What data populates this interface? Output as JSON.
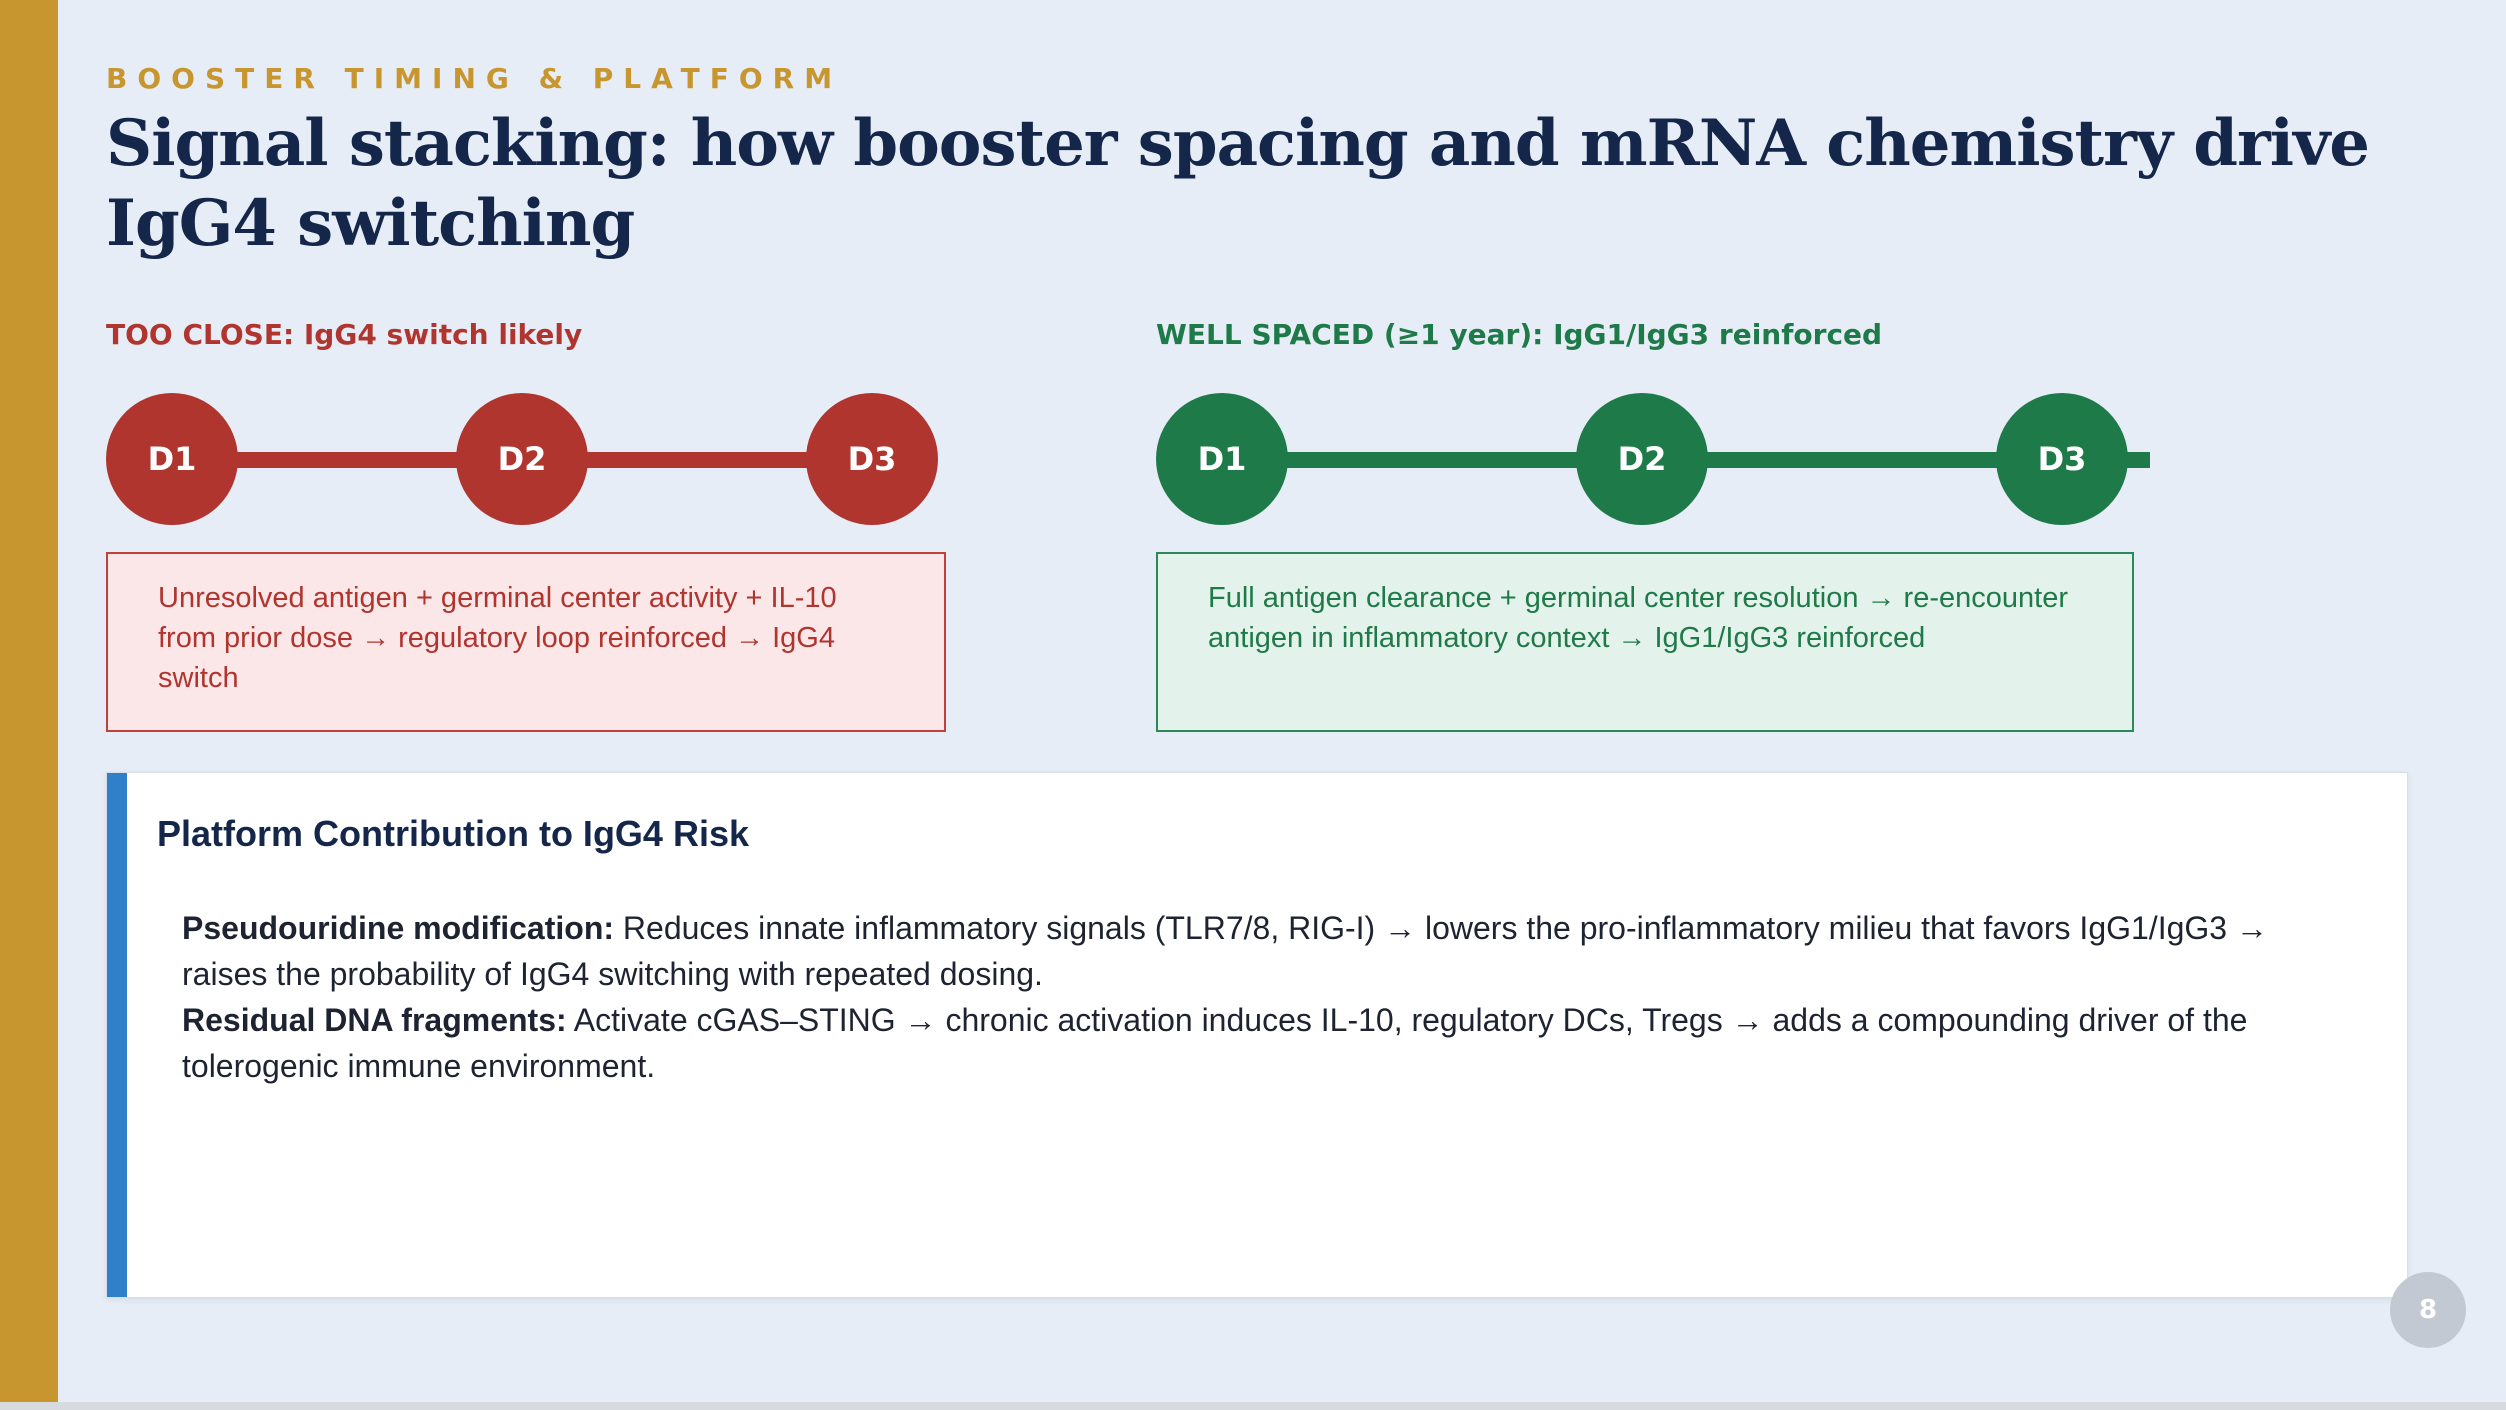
{
  "eyebrow": "BOOSTER TIMING & PLATFORM",
  "title": "Signal stacking: how booster spacing and mRNA chemistry drive IgG4 switching",
  "too_close": {
    "label": "TOO CLOSE: IgG4 switch likely",
    "doses": [
      "D1",
      "D2",
      "D3"
    ],
    "note": "Unresolved antigen + germinal center activity + IL-10 from prior dose → regulatory loop reinforced → IgG4 switch",
    "color": "#b0352f"
  },
  "well_spaced": {
    "label": "WELL SPACED (≥1 year): IgG1/IgG3 reinforced",
    "doses": [
      "D1",
      "D2",
      "D3"
    ],
    "note": "Full antigen clearance + germinal center resolution → re-encounter antigen in inflammatory context → IgG1/IgG3 reinforced",
    "color": "#1f7a4a"
  },
  "platform": {
    "heading": "Platform Contribution to IgG4 Risk",
    "items": [
      {
        "term": "Pseudouridine modification:",
        "text": " Reduces innate inflammatory signals (TLR7/8, RIG-I) → lowers the pro-inflammatory milieu that favors IgG1/IgG3 → raises the probability of IgG4 switching with repeated dosing."
      },
      {
        "term": "Residual DNA fragments:",
        "text": " Activate cGAS–STING → chronic activation induces IL-10, regulatory DCs, Tregs → adds a compounding driver of the tolerogenic immune environment."
      }
    ]
  },
  "page_number": "8",
  "colors": {
    "gold": "#c8962e",
    "navy": "#14274a",
    "blue_accent": "#2f80c8"
  }
}
